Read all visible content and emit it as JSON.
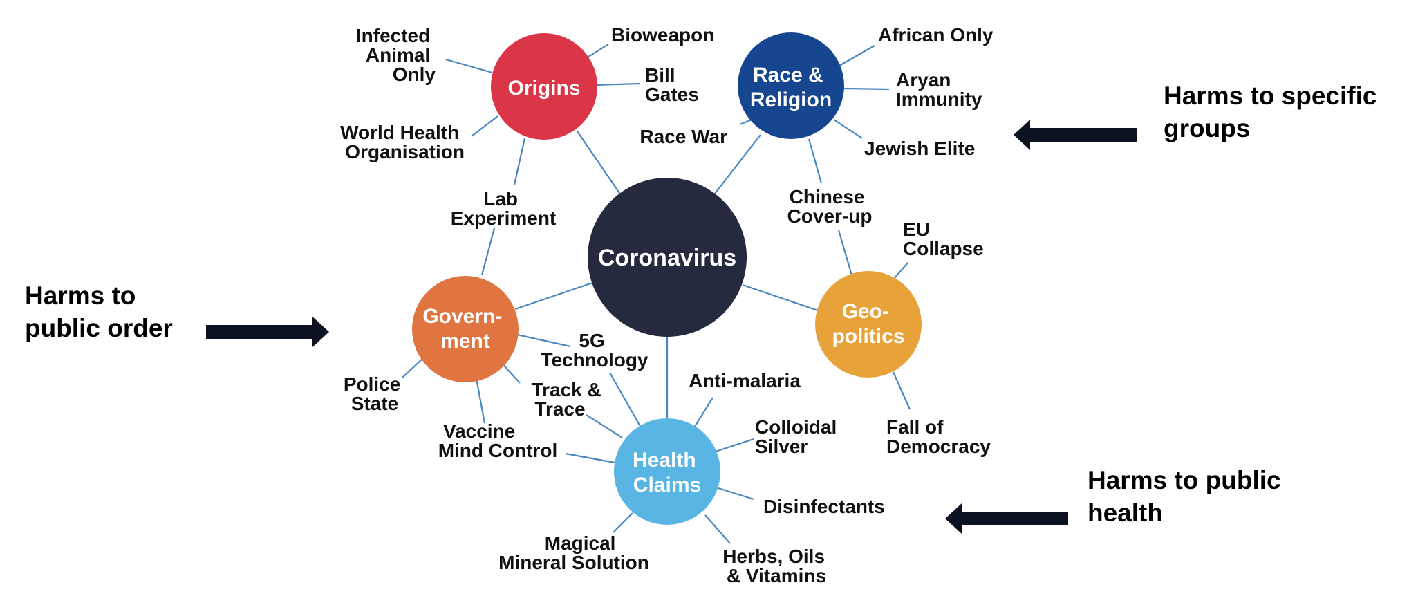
{
  "colors": {
    "center": "#262a3f",
    "origins": "#db3548",
    "race_religion": "#16468f",
    "government": "#e07542",
    "geopolitics": "#e8a23a",
    "health_claims": "#59b5e3",
    "edge": "#4a86c0"
  },
  "center": {
    "label": "Coronavirus"
  },
  "hubs": {
    "origins": {
      "lines": [
        "Origins"
      ]
    },
    "race_religion": {
      "lines": [
        "Race &",
        "Religion"
      ]
    },
    "government": {
      "lines": [
        "Govern-",
        "ment"
      ]
    },
    "geopolitics": {
      "lines": [
        "Geo-",
        "politics"
      ]
    },
    "health_claims": {
      "lines": [
        "Health",
        "Claims"
      ]
    }
  },
  "leaves": {
    "infected_animal": {
      "lines": [
        "Infected",
        "Animal",
        "Only"
      ]
    },
    "bioweapon": {
      "lines": [
        "Bioweapon"
      ]
    },
    "bill_gates": {
      "lines": [
        "Bill",
        "Gates"
      ]
    },
    "who": {
      "lines": [
        "World Health",
        "Organisation"
      ]
    },
    "lab_experiment": {
      "lines": [
        "Lab",
        "Experiment"
      ]
    },
    "african_only": {
      "lines": [
        "African Only"
      ]
    },
    "aryan_immunity": {
      "lines": [
        "Aryan",
        "Immunity"
      ]
    },
    "race_war": {
      "lines": [
        "Race War"
      ]
    },
    "jewish_elite": {
      "lines": [
        "Jewish Elite"
      ]
    },
    "chinese_coverup": {
      "lines": [
        "Chinese",
        "Cover-up"
      ]
    },
    "eu_collapse": {
      "lines": [
        "EU",
        "Collapse"
      ]
    },
    "fall_democracy": {
      "lines": [
        "Fall of",
        "Democracy"
      ]
    },
    "police_state": {
      "lines": [
        "Police",
        "State"
      ]
    },
    "vaccine_mind_control": {
      "lines": [
        "Vaccine",
        "Mind Control"
      ]
    },
    "track_trace": {
      "lines": [
        "Track &",
        "Trace"
      ]
    },
    "five_g": {
      "lines": [
        "5G",
        "Technology"
      ]
    },
    "anti_malaria": {
      "lines": [
        "Anti-malaria"
      ]
    },
    "colloidal_silver": {
      "lines": [
        "Colloidal",
        "Silver"
      ]
    },
    "disinfectants": {
      "lines": [
        "Disinfectants"
      ]
    },
    "herbs_oils": {
      "lines": [
        "Herbs, Oils",
        "& Vitamins"
      ]
    },
    "magical_mineral": {
      "lines": [
        "Magical",
        "Mineral Solution"
      ]
    }
  },
  "annotations": {
    "specific_groups": {
      "lines": [
        "Harms to specific",
        "groups"
      ]
    },
    "public_order": {
      "lines": [
        "Harms to",
        "public order"
      ]
    },
    "public_health": {
      "lines": [
        "Harms to public",
        "health"
      ]
    }
  }
}
